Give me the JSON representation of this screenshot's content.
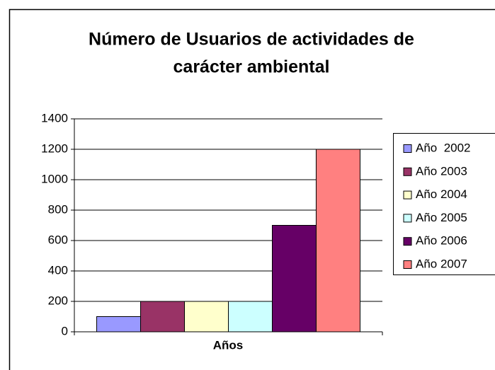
{
  "chart_data": {
    "type": "bar",
    "title": [
      "Número de Usuarios de actividades de",
      "carácter ambiental"
    ],
    "x_label": "Años",
    "categories": [
      null
    ],
    "series": [
      {
        "name": "Año  2002",
        "color": "#9999ff",
        "values": [
          100
        ]
      },
      {
        "name": "Año 2003",
        "color": "#993366",
        "values": [
          200
        ]
      },
      {
        "name": "Año 2004",
        "color": "#ffffcc",
        "values": [
          200
        ]
      },
      {
        "name": "Año 2005",
        "color": "#ccffff",
        "values": [
          200
        ]
      },
      {
        "name": "Año 2006",
        "color": "#660066",
        "values": [
          700
        ]
      },
      {
        "name": "Año 2007",
        "color": "#ff8080",
        "values": [
          1200
        ]
      }
    ],
    "ylim": [
      0,
      1400
    ],
    "yticks": [
      0,
      200,
      400,
      600,
      800,
      1000,
      1200,
      1400
    ],
    "grid": true,
    "legend": "right"
  }
}
